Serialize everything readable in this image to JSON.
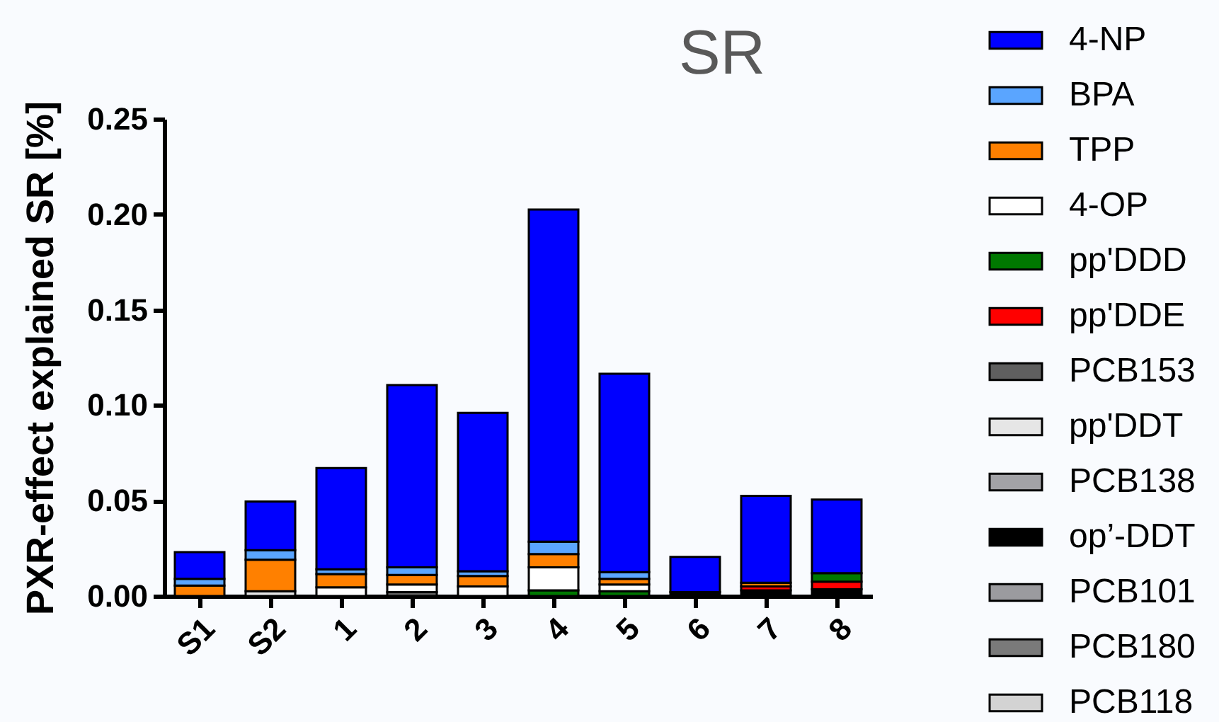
{
  "chart_data": {
    "type": "bar",
    "title": "SR",
    "ylabel": "PXR-effect explained SR [%]",
    "categories": [
      "S1",
      "S2",
      "1",
      "2",
      "3",
      "4",
      "5",
      "6",
      "7",
      "8"
    ],
    "stacked": true,
    "ylim": [
      0,
      0.25
    ],
    "yticks": [
      {
        "value": 0,
        "label": "0.00"
      },
      {
        "value": 0.05,
        "label": "0.05"
      },
      {
        "value": 0.1,
        "label": "0.10"
      },
      {
        "value": 0.15,
        "label": "0.15"
      },
      {
        "value": 0.2,
        "label": "0.20"
      },
      {
        "value": 0.25,
        "label": "0.25"
      }
    ],
    "grid": false,
    "legend": "right",
    "series": [
      {
        "name": "PCB118",
        "color": "#d3d3d3",
        "values": [
          null,
          null,
          null,
          null,
          null,
          null,
          null,
          null,
          null,
          null
        ]
      },
      {
        "name": "PCB180",
        "color": "#7a7a7a",
        "values": [
          null,
          null,
          null,
          null,
          null,
          null,
          null,
          null,
          null,
          null
        ]
      },
      {
        "name": "PCB101",
        "color": "#9b9b9f",
        "values": [
          null,
          null,
          null,
          null,
          null,
          null,
          null,
          null,
          null,
          null
        ]
      },
      {
        "name": "op’-DDT",
        "color": "#000000",
        "values": [
          null,
          null,
          null,
          null,
          null,
          null,
          null,
          0.002,
          0.003,
          0.0035
        ]
      },
      {
        "name": "PCB138",
        "color": "#a2a2a6",
        "values": [
          null,
          null,
          null,
          null,
          null,
          null,
          null,
          null,
          null,
          null
        ]
      },
      {
        "name": "pp'DDT",
        "color": "#e6e6e6",
        "values": [
          null,
          0.0025,
          null,
          null,
          null,
          null,
          null,
          null,
          null,
          null
        ]
      },
      {
        "name": "PCB153",
        "color": "#5f5f5f",
        "values": [
          null,
          null,
          null,
          0.002,
          null,
          null,
          null,
          null,
          null,
          null
        ]
      },
      {
        "name": "pp'DDE",
        "color": "#ff0000",
        "values": [
          null,
          null,
          null,
          null,
          null,
          null,
          null,
          null,
          0.002,
          0.004
        ]
      },
      {
        "name": "pp'DDD",
        "color": "#007800",
        "values": [
          null,
          null,
          null,
          null,
          null,
          0.003,
          0.0025,
          null,
          null,
          0.0045
        ]
      },
      {
        "name": "4-OP",
        "color": "#ffffff",
        "values": [
          null,
          null,
          0.0045,
          0.004,
          0.005,
          0.012,
          0.0035,
          null,
          null,
          null
        ]
      },
      {
        "name": "TPP",
        "color": "#ff8000",
        "values": [
          0.0055,
          0.0165,
          0.007,
          0.005,
          0.0055,
          0.007,
          0.003,
          null,
          0.002,
          null
        ]
      },
      {
        "name": "BPA",
        "color": "#5aa5ff",
        "values": [
          0.0035,
          0.005,
          0.0025,
          0.004,
          0.0025,
          0.0065,
          0.0035,
          null,
          null,
          null
        ]
      },
      {
        "name": "4-NP",
        "color": "#0000ff",
        "values": [
          0.014,
          0.0255,
          0.053,
          0.0955,
          0.083,
          0.174,
          0.104,
          0.0185,
          0.0455,
          0.0385
        ]
      }
    ]
  }
}
